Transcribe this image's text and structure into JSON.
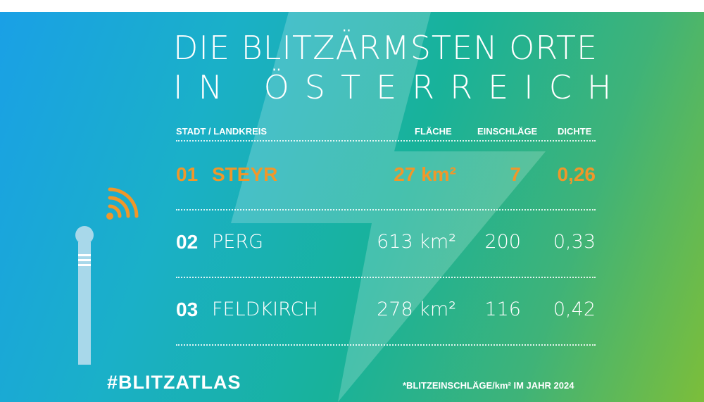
{
  "title": {
    "line1": "DIE BLITZÄRMSTEN ORTE",
    "line2": "IN ÖSTERREICH"
  },
  "table": {
    "headers": {
      "city": "STADT / LANDKREIS",
      "area": "FLÄCHE",
      "strikes": "EINSCHLÄGE",
      "density": "DICHTE"
    },
    "rows": [
      {
        "rank": "01",
        "city": "STEYR",
        "area": "27 km²",
        "strikes": "7",
        "density": "0,26"
      },
      {
        "rank": "02",
        "city": "PERG",
        "area": "613 km²",
        "strikes": "200",
        "density": "0,33"
      },
      {
        "rank": "03",
        "city": "FELDKIRCH",
        "area": "278 km²",
        "strikes": "116",
        "density": "0,42"
      }
    ]
  },
  "hashtag": "#BLITZATLAS",
  "footnote": "*BLITZEINSCHLÄGE/km² IM JAHR 2024",
  "colors": {
    "highlight": "#f0972a",
    "text": "#ffffff",
    "gradient_start": "#1aa0e6",
    "gradient_end": "#7cbe3a"
  },
  "icons": {
    "background": "lightning-bolt-icon",
    "rod": "lightning-rod-icon",
    "signal": "signal-waves-icon"
  }
}
